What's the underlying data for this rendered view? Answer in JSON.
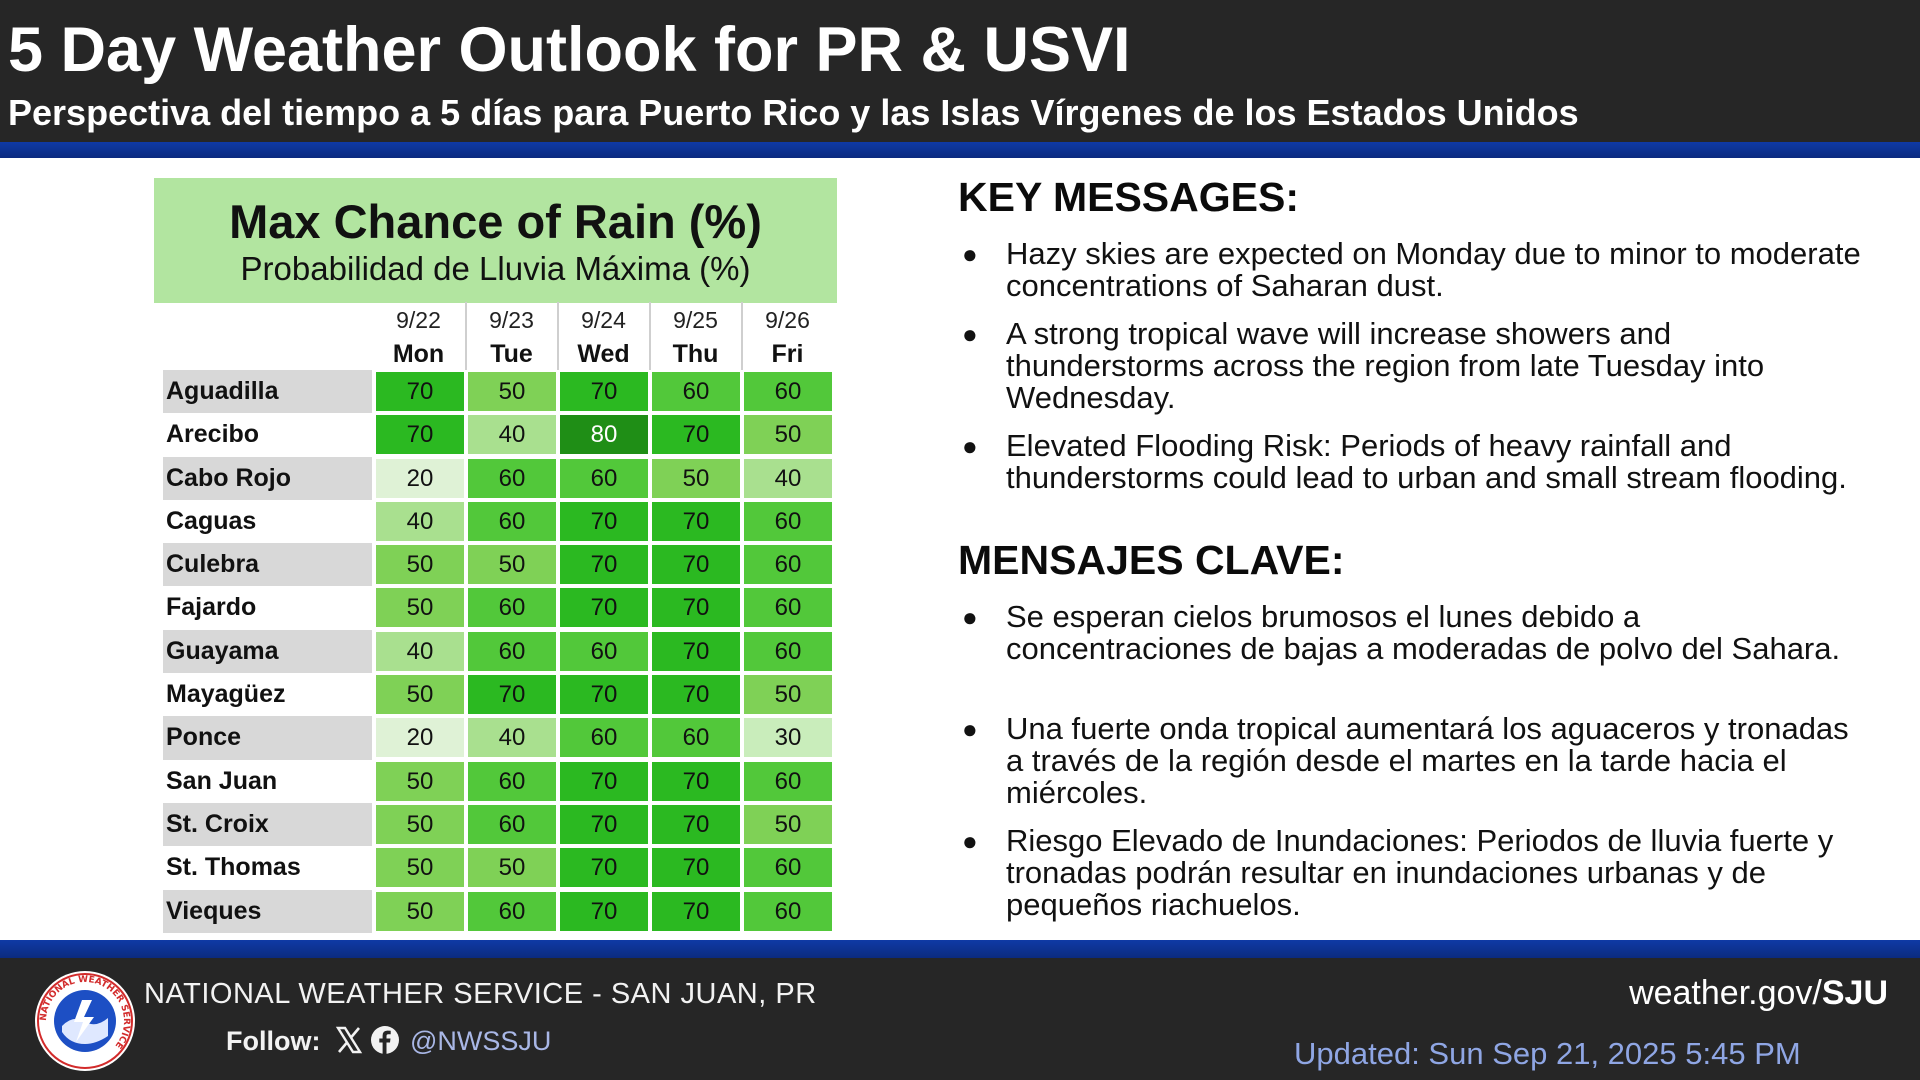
{
  "header": {
    "title": "5 Day Weather Outlook for PR & USVI",
    "subtitle": "Perspectiva del tiempo a 5 días para Puerto Rico y las Islas Vírgenes de los Estados Unidos"
  },
  "rain_table": {
    "title": "Max Chance of Rain (%)",
    "subtitle": "Probabilidad de Lluvia Máxima (%)",
    "columns": [
      {
        "date": "9/22",
        "day": "Mon"
      },
      {
        "date": "9/23",
        "day": "Tue"
      },
      {
        "date": "9/24",
        "day": "Wed"
      },
      {
        "date": "9/25",
        "day": "Thu"
      },
      {
        "date": "9/26",
        "day": "Fri"
      }
    ],
    "rows": [
      {
        "city": "Aguadilla",
        "values": [
          70,
          50,
          70,
          60,
          60
        ]
      },
      {
        "city": "Arecibo",
        "values": [
          70,
          40,
          80,
          70,
          50
        ]
      },
      {
        "city": "Cabo Rojo",
        "values": [
          20,
          60,
          60,
          50,
          40
        ]
      },
      {
        "city": "Caguas",
        "values": [
          40,
          60,
          70,
          70,
          60
        ]
      },
      {
        "city": "Culebra",
        "values": [
          50,
          50,
          70,
          70,
          60
        ]
      },
      {
        "city": "Fajardo",
        "values": [
          50,
          60,
          70,
          70,
          60
        ]
      },
      {
        "city": "Guayama",
        "values": [
          40,
          60,
          60,
          70,
          60
        ]
      },
      {
        "city": "Mayagüez",
        "values": [
          50,
          70,
          70,
          70,
          50
        ]
      },
      {
        "city": "Ponce",
        "values": [
          20,
          40,
          60,
          60,
          30
        ]
      },
      {
        "city": "San Juan",
        "values": [
          50,
          60,
          70,
          70,
          60
        ]
      },
      {
        "city": "St. Croix",
        "values": [
          50,
          60,
          70,
          70,
          50
        ]
      },
      {
        "city": "St. Thomas",
        "values": [
          50,
          50,
          70,
          70,
          60
        ]
      },
      {
        "city": "Vieques",
        "values": [
          50,
          60,
          70,
          70,
          60
        ]
      }
    ],
    "color_scale": {
      "20": "#dff2d6",
      "30": "#c9edbb",
      "40": "#a9e08f",
      "50": "#7fd156",
      "60": "#52c83a",
      "70": "#2bb921",
      "80": "#1f8e16"
    }
  },
  "key_messages": {
    "title": "KEY MESSAGES:",
    "bullets": [
      "Hazy skies are expected on Monday due to minor to moderate concentrations of Saharan dust.",
      "A strong tropical wave will increase showers and thunderstorms across the region from late Tuesday into Wednesday.",
      "Elevated Flooding Risk: Periods of heavy rainfall and thunderstorms could lead to urban and small stream flooding."
    ]
  },
  "mensajes_clave": {
    "title": "MENSAJES CLAVE:",
    "bullets": [
      "Se esperan cielos brumosos el lunes debido a concentraciones de bajas a moderadas de polvo del Sahara.",
      "Una fuerte onda tropical aumentará los aguaceros y tronadas a través de la región desde el martes en la tarde hacia el miércoles.",
      " Riesgo Elevado de Inundaciones: Periodos de lluvia fuerte y tronadas podrán resultar en inundaciones urbanas y de pequeños riachuelos."
    ]
  },
  "footer": {
    "agency": "NATIONAL WEATHER SERVICE - SAN JUAN, PR",
    "logo_text": "NATIONAL WEATHER SERVICE",
    "follow_label": "Follow:",
    "handle": "@NWSSJU",
    "website_prefix": "weather.gov/",
    "website_suffix": "SJU",
    "updated": "Updated: Sun Sep 21, 2025 5:45 PM"
  },
  "colors": {
    "header_bg": "#262626",
    "accent_blue": "#0f3aa5",
    "title_box_green": "#b2e5a0",
    "row_alt_gray": "#d8d8d8"
  }
}
